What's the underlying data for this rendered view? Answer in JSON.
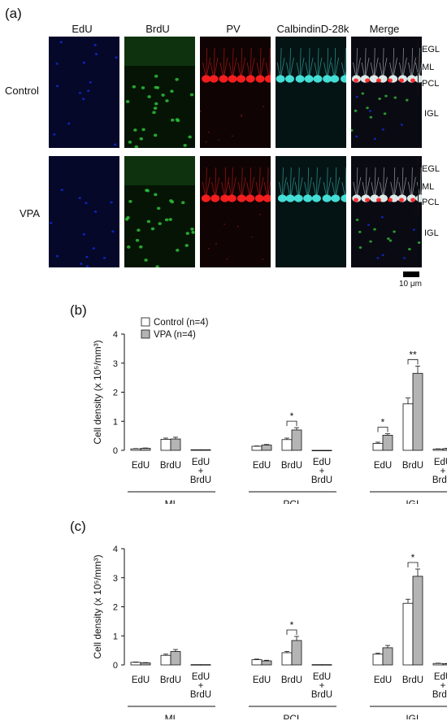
{
  "figure": {
    "panel_a_label": "(a)",
    "panel_b_label": "(b)",
    "panel_c_label": "(c)",
    "columns": [
      "EdU",
      "BrdU",
      "PV",
      "CalbindinD-28k",
      "Merge"
    ],
    "rows": [
      "Control",
      "VPA"
    ],
    "layers": [
      "EGL",
      "ML",
      "PCL",
      "IGL"
    ],
    "scale_bar": "10 μm",
    "channel_colors": {
      "EdU": "#1028c8",
      "BrdU": "#2ebd3a",
      "PV": "#ff2020",
      "CalbindinD-28k": "#48e8e0"
    }
  },
  "chart_data": [
    {
      "type": "bar",
      "panel": "(b)",
      "ylabel": "Cell density (x 10⁵/mm³)",
      "ylim": [
        0,
        4
      ],
      "yticks": [
        0,
        1,
        2,
        3,
        4
      ],
      "legend": [
        {
          "name": "Control (n=4)",
          "color": "#ffffff"
        },
        {
          "name": "VPA (n=4)",
          "color": "#b4b4b4"
        }
      ],
      "groups": [
        "ML",
        "PCL",
        "IGL"
      ],
      "categories": [
        "EdU",
        "BrdU",
        "EdU + BrdU"
      ],
      "series": [
        {
          "name": "Control (n=4)",
          "values": [
            [
              0.05,
              0.38,
              0.02
            ],
            [
              0.14,
              0.37,
              0.0
            ],
            [
              0.24,
              1.6,
              0.04
            ]
          ],
          "errors": [
            [
              0.01,
              0.04,
              0.0
            ],
            [
              0.01,
              0.05,
              0.0
            ],
            [
              0.04,
              0.2,
              0.01
            ]
          ]
        },
        {
          "name": "VPA (n=4)",
          "values": [
            [
              0.07,
              0.39,
              0.02
            ],
            [
              0.18,
              0.7,
              0.0
            ],
            [
              0.52,
              2.65,
              0.06
            ]
          ],
          "errors": [
            [
              0.01,
              0.06,
              0.0
            ],
            [
              0.02,
              0.08,
              0.0
            ],
            [
              0.05,
              0.25,
              0.01
            ]
          ]
        }
      ],
      "significance": [
        {
          "group": "PCL",
          "category": "BrdU",
          "label": "*"
        },
        {
          "group": "IGL",
          "category": "EdU",
          "label": "*"
        },
        {
          "group": "IGL",
          "category": "BrdU",
          "label": "**"
        }
      ]
    },
    {
      "type": "bar",
      "panel": "(c)",
      "ylabel": "Cell density (x 10⁵/mm³)",
      "ylim": [
        0,
        4
      ],
      "yticks": [
        0,
        1,
        2,
        3,
        4
      ],
      "groups": [
        "ML",
        "PCL",
        "IGL"
      ],
      "categories": [
        "EdU",
        "BrdU",
        "EdU + BrdU"
      ],
      "series": [
        {
          "name": "Control (n=4)",
          "values": [
            [
              0.09,
              0.33,
              0.01
            ],
            [
              0.18,
              0.42,
              0.01
            ],
            [
              0.37,
              2.12,
              0.05
            ]
          ],
          "errors": [
            [
              0.01,
              0.04,
              0.0
            ],
            [
              0.02,
              0.04,
              0.0
            ],
            [
              0.03,
              0.14,
              0.01
            ]
          ]
        },
        {
          "name": "VPA (n=4)",
          "values": [
            [
              0.07,
              0.46,
              0.01
            ],
            [
              0.14,
              0.84,
              0.01
            ],
            [
              0.59,
              3.05,
              0.04
            ]
          ],
          "errors": [
            [
              0.01,
              0.07,
              0.0
            ],
            [
              0.02,
              0.14,
              0.0
            ],
            [
              0.08,
              0.25,
              0.01
            ]
          ]
        }
      ],
      "significance": [
        {
          "group": "PCL",
          "category": "BrdU",
          "label": "*"
        },
        {
          "group": "IGL",
          "category": "BrdU",
          "label": "*"
        }
      ]
    }
  ]
}
